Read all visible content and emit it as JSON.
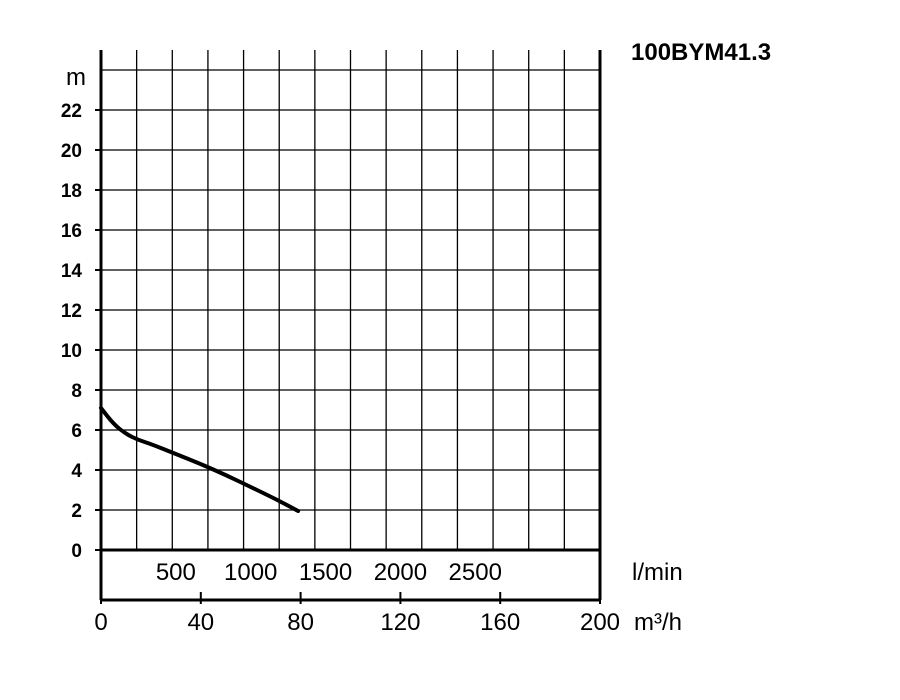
{
  "chart_data": {
    "type": "line",
    "title": "100BYM41.3",
    "ylabel": "m",
    "ylim": [
      0,
      24
    ],
    "yticks": [
      0,
      2,
      4,
      6,
      8,
      10,
      12,
      14,
      16,
      18,
      20,
      22
    ],
    "x_secondary_label": "l/min",
    "x_secondary_ticks": [
      "500",
      "1000",
      "1500",
      "2000",
      "2500"
    ],
    "xlabel": "m³/h",
    "xlim": [
      0,
      200
    ],
    "xticks": [
      0,
      40,
      80,
      120,
      160,
      200
    ],
    "grid": true,
    "series": [
      {
        "x": [
          0,
          5,
          10,
          15,
          20,
          30,
          40,
          50,
          60,
          70,
          79
        ],
        "y": [
          7.1,
          6.3,
          5.8,
          5.5,
          5.3,
          4.8,
          4.3,
          3.75,
          3.15,
          2.55,
          1.95
        ]
      }
    ]
  }
}
